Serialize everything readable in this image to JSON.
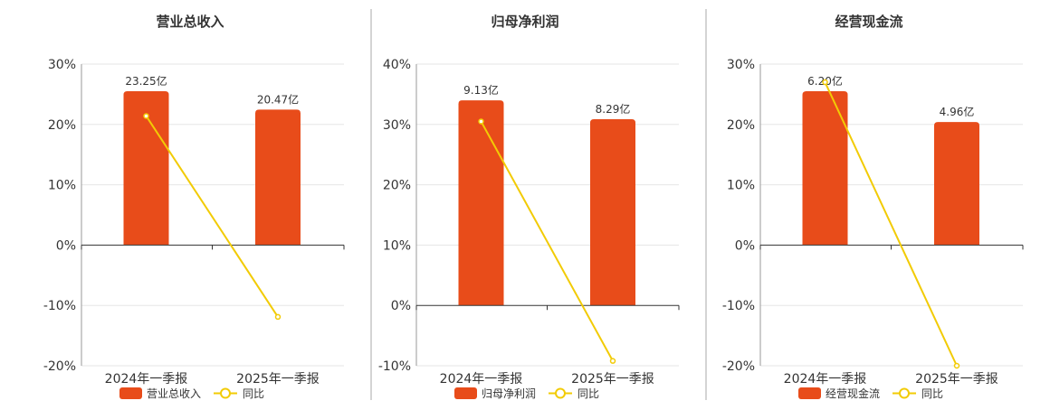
{
  "colors": {
    "bar": "#E84C1A",
    "line": "#F2CB05",
    "grid": "#E6E6E6",
    "axis": "#333333",
    "separator": "#AAAAAA"
  },
  "chart_data": [
    {
      "type": "bar",
      "title": "营业总收入",
      "categories": [
        "2024年一季报",
        "2025年一季报"
      ],
      "yticks": [
        "30%",
        "20%",
        "10%",
        "0%",
        "-10%",
        "-20%"
      ],
      "ylim": [
        -20,
        30
      ],
      "series": [
        {
          "name": "营业总收入",
          "type": "bar",
          "values": [
            23.25,
            20.47
          ],
          "labels": [
            "23.25亿",
            "20.47亿"
          ]
        },
        {
          "name": "同比",
          "type": "line",
          "values": [
            21.4,
            -11.9
          ]
        }
      ],
      "legend": "bottom"
    },
    {
      "type": "bar",
      "title": "归母净利润",
      "categories": [
        "2024年一季报",
        "2025年一季报"
      ],
      "yticks": [
        "40%",
        "30%",
        "20%",
        "10%",
        "0%",
        "-10%"
      ],
      "ylim": [
        -10,
        40
      ],
      "series": [
        {
          "name": "归母净利润",
          "type": "bar",
          "values": [
            9.13,
            8.29
          ],
          "labels": [
            "9.13亿",
            "8.29亿"
          ]
        },
        {
          "name": "同比",
          "type": "line",
          "values": [
            30.5,
            -9.2
          ]
        }
      ],
      "legend": "bottom"
    },
    {
      "type": "bar",
      "title": "经营现金流",
      "categories": [
        "2024年一季报",
        "2025年一季报"
      ],
      "yticks": [
        "30%",
        "20%",
        "10%",
        "0%",
        "-10%",
        "-20%"
      ],
      "ylim": [
        -20,
        30
      ],
      "series": [
        {
          "name": "经营现金流",
          "type": "bar",
          "values": [
            6.2,
            4.96
          ],
          "labels": [
            "6.20亿",
            "4.96亿"
          ]
        },
        {
          "name": "同比",
          "type": "line",
          "values": [
            27.0,
            -20.0
          ]
        }
      ],
      "legend": "bottom"
    }
  ]
}
